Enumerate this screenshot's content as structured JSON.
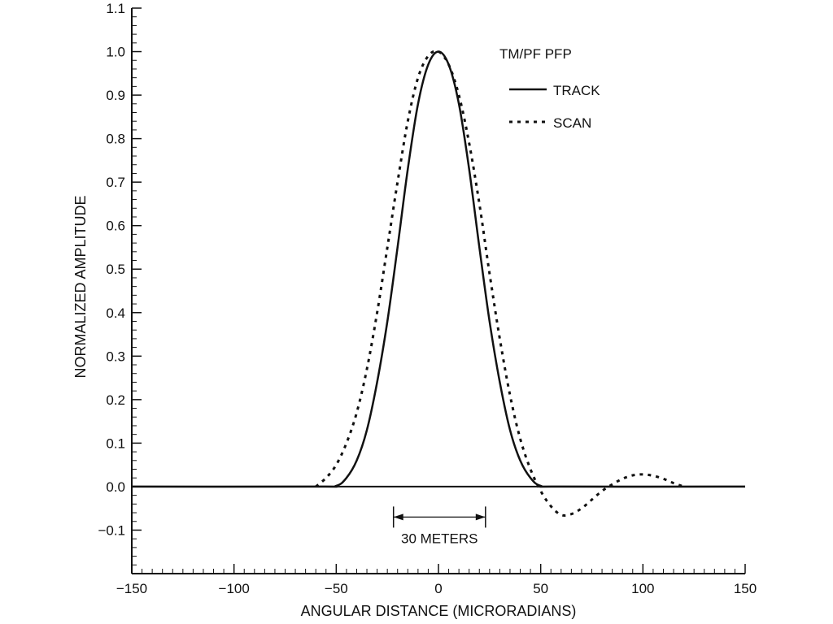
{
  "chart_data": {
    "type": "line",
    "title": "",
    "xlabel": "ANGULAR DISTANCE (MICRORADIANS)",
    "ylabel": "NORMALIZED AMPLITUDE",
    "xlim": [
      -150,
      150
    ],
    "ylim": [
      -0.2,
      1.1
    ],
    "x_ticks": [
      -150,
      -100,
      -50,
      0,
      50,
      100,
      150
    ],
    "x_tick_labels": [
      "−150",
      "−100",
      "−50",
      "0",
      "50",
      "100",
      "150"
    ],
    "y_ticks": [
      -0.1,
      0.0,
      0.1,
      0.2,
      0.3,
      0.4,
      0.5,
      0.6,
      0.7,
      0.8,
      0.9,
      1.0,
      1.1
    ],
    "y_tick_labels": [
      "−0.1",
      "0.0",
      "0.1",
      "0.2",
      "0.3",
      "0.4",
      "0.5",
      "0.6",
      "0.7",
      "0.8",
      "0.9",
      "1.0",
      "1.1"
    ],
    "grid": false,
    "legend": {
      "title": "TM/PF PFP",
      "placement": "top-right"
    },
    "series": [
      {
        "name": "TRACK",
        "style": "solid",
        "color": "#111111",
        "x": [
          -150,
          -60,
          -50,
          -45,
          -40,
          -35,
          -30,
          -25,
          -20,
          -15,
          -10,
          -5,
          0,
          5,
          10,
          15,
          20,
          25,
          30,
          35,
          40,
          45,
          50,
          60,
          150
        ],
        "y": [
          0.0,
          0.0,
          0.002,
          0.02,
          0.06,
          0.13,
          0.24,
          0.38,
          0.55,
          0.73,
          0.88,
          0.97,
          1.0,
          0.97,
          0.88,
          0.73,
          0.55,
          0.38,
          0.24,
          0.13,
          0.06,
          0.02,
          0.002,
          0.0,
          0.0
        ]
      },
      {
        "name": "SCAN",
        "style": "dotted",
        "color": "#111111",
        "x": [
          -60,
          -55,
          -50,
          -45,
          -40,
          -35,
          -30,
          -25,
          -20,
          -15,
          -10,
          -5,
          0,
          5,
          10,
          15,
          20,
          25,
          30,
          35,
          40,
          45,
          50,
          55,
          60,
          65,
          70,
          75,
          80,
          85,
          90,
          95,
          100,
          105,
          110,
          115,
          120
        ],
        "y": [
          0.0,
          0.02,
          0.05,
          0.1,
          0.17,
          0.27,
          0.4,
          0.55,
          0.7,
          0.84,
          0.94,
          0.99,
          1.0,
          0.97,
          0.9,
          0.79,
          0.65,
          0.49,
          0.34,
          0.21,
          0.11,
          0.04,
          -0.01,
          -0.045,
          -0.065,
          -0.063,
          -0.05,
          -0.03,
          -0.01,
          0.005,
          0.018,
          0.026,
          0.028,
          0.025,
          0.018,
          0.008,
          0.0
        ]
      }
    ],
    "annotations": [
      {
        "type": "dimension",
        "x_start": -22,
        "x_end": 23,
        "y": -0.07,
        "text": "30 METERS"
      }
    ]
  }
}
